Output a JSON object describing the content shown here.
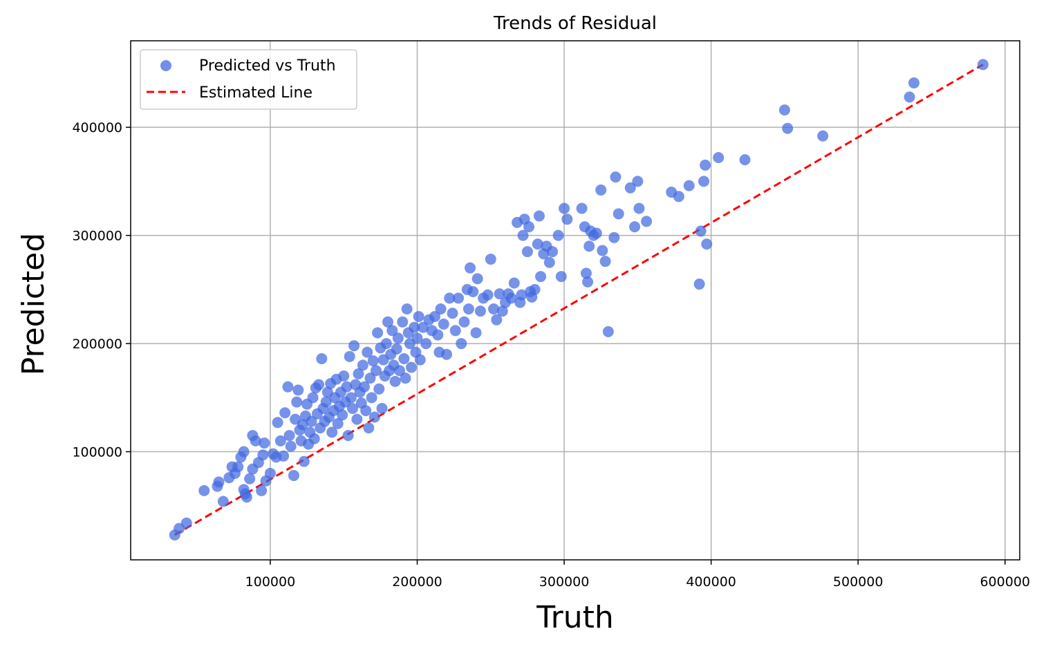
{
  "chart_data": {
    "type": "scatter",
    "title": "Trends of Residual",
    "xlabel": "Truth",
    "ylabel": "Predicted",
    "xlim": [
      5000,
      610000
    ],
    "ylim": [
      0,
      480000
    ],
    "xticks": [
      100000,
      200000,
      300000,
      400000,
      500000,
      600000
    ],
    "yticks": [
      100000,
      200000,
      300000,
      400000
    ],
    "grid": true,
    "legend_position": "top-left",
    "colors": {
      "points": "#4169e1",
      "line": "#ff0000"
    },
    "series": [
      {
        "name": "Predicted vs Truth",
        "kind": "scatter",
        "points": [
          [
            35000,
            23000
          ],
          [
            38000,
            29000
          ],
          [
            43000,
            34000
          ],
          [
            55000,
            64000
          ],
          [
            64000,
            68000
          ],
          [
            65000,
            72000
          ],
          [
            68000,
            54000
          ],
          [
            72000,
            76000
          ],
          [
            74000,
            86000
          ],
          [
            76000,
            80000
          ],
          [
            78000,
            86000
          ],
          [
            80000,
            95000
          ],
          [
            82000,
            100000
          ],
          [
            82000,
            65000
          ],
          [
            83000,
            61000
          ],
          [
            84000,
            58000
          ],
          [
            86000,
            75000
          ],
          [
            88000,
            84000
          ],
          [
            88000,
            115000
          ],
          [
            90000,
            110000
          ],
          [
            92000,
            90000
          ],
          [
            94000,
            64000
          ],
          [
            95000,
            97000
          ],
          [
            96000,
            108000
          ],
          [
            97000,
            73000
          ],
          [
            100000,
            80000
          ],
          [
            102000,
            98000
          ],
          [
            104000,
            95000
          ],
          [
            105000,
            127000
          ],
          [
            107000,
            110000
          ],
          [
            109000,
            96000
          ],
          [
            110000,
            136000
          ],
          [
            112000,
            160000
          ],
          [
            113000,
            115000
          ],
          [
            114000,
            105000
          ],
          [
            116000,
            78000
          ],
          [
            117000,
            130000
          ],
          [
            118000,
            146000
          ],
          [
            119000,
            157000
          ],
          [
            120000,
            120000
          ],
          [
            121000,
            110000
          ],
          [
            122000,
            125000
          ],
          [
            123000,
            91000
          ],
          [
            124000,
            133000
          ],
          [
            125000,
            144000
          ],
          [
            126000,
            107000
          ],
          [
            127000,
            118000
          ],
          [
            128000,
            128000
          ],
          [
            129000,
            150000
          ],
          [
            130000,
            112000
          ],
          [
            131000,
            159000
          ],
          [
            132000,
            135000
          ],
          [
            133000,
            162000
          ],
          [
            134000,
            122000
          ],
          [
            135000,
            186000
          ],
          [
            136000,
            140000
          ],
          [
            137000,
            128000
          ],
          [
            138000,
            146000
          ],
          [
            139000,
            155000
          ],
          [
            140000,
            132000
          ],
          [
            141000,
            163000
          ],
          [
            142000,
            118000
          ],
          [
            143000,
            138000
          ],
          [
            144000,
            150000
          ],
          [
            145000,
            167000
          ],
          [
            146000,
            126000
          ],
          [
            147000,
            142000
          ],
          [
            148000,
            155000
          ],
          [
            149000,
            134000
          ],
          [
            150000,
            170000
          ],
          [
            151000,
            146000
          ],
          [
            152000,
            160000
          ],
          [
            153000,
            115000
          ],
          [
            154000,
            188000
          ],
          [
            155000,
            150000
          ],
          [
            156000,
            140000
          ],
          [
            157000,
            198000
          ],
          [
            158000,
            162000
          ],
          [
            159000,
            130000
          ],
          [
            160000,
            172000
          ],
          [
            161000,
            155000
          ],
          [
            162000,
            145000
          ],
          [
            163000,
            180000
          ],
          [
            164000,
            160000
          ],
          [
            165000,
            138000
          ],
          [
            166000,
            192000
          ],
          [
            167000,
            122000
          ],
          [
            168000,
            168000
          ],
          [
            169000,
            150000
          ],
          [
            170000,
            184000
          ],
          [
            171000,
            132000
          ],
          [
            172000,
            175000
          ],
          [
            173000,
            210000
          ],
          [
            174000,
            158000
          ],
          [
            175000,
            196000
          ],
          [
            176000,
            140000
          ],
          [
            177000,
            185000
          ],
          [
            178000,
            170000
          ],
          [
            179000,
            200000
          ],
          [
            180000,
            220000
          ],
          [
            181000,
            175000
          ],
          [
            182000,
            190000
          ],
          [
            183000,
            212000
          ],
          [
            184000,
            180000
          ],
          [
            185000,
            165000
          ],
          [
            186000,
            195000
          ],
          [
            187000,
            205000
          ],
          [
            188000,
            175000
          ],
          [
            190000,
            220000
          ],
          [
            191000,
            186000
          ],
          [
            192000,
            168000
          ],
          [
            193000,
            232000
          ],
          [
            194000,
            210000
          ],
          [
            195000,
            200000
          ],
          [
            196000,
            178000
          ],
          [
            198000,
            215000
          ],
          [
            199000,
            192000
          ],
          [
            200000,
            205000
          ],
          [
            201000,
            225000
          ],
          [
            202000,
            185000
          ],
          [
            204000,
            215000
          ],
          [
            206000,
            200000
          ],
          [
            208000,
            222000
          ],
          [
            210000,
            212000
          ],
          [
            212000,
            225000
          ],
          [
            214000,
            208000
          ],
          [
            215000,
            192000
          ],
          [
            216000,
            232000
          ],
          [
            218000,
            218000
          ],
          [
            220000,
            190000
          ],
          [
            222000,
            242000
          ],
          [
            224000,
            228000
          ],
          [
            226000,
            212000
          ],
          [
            228000,
            242000
          ],
          [
            230000,
            200000
          ],
          [
            232000,
            220000
          ],
          [
            234000,
            250000
          ],
          [
            235000,
            232000
          ],
          [
            236000,
            270000
          ],
          [
            238000,
            248000
          ],
          [
            240000,
            210000
          ],
          [
            241000,
            260000
          ],
          [
            243000,
            230000
          ],
          [
            245000,
            242000
          ],
          [
            248000,
            245000
          ],
          [
            250000,
            278000
          ],
          [
            252000,
            232000
          ],
          [
            254000,
            222000
          ],
          [
            256000,
            246000
          ],
          [
            258000,
            230000
          ],
          [
            260000,
            238000
          ],
          [
            262000,
            246000
          ],
          [
            264000,
            242000
          ],
          [
            266000,
            256000
          ],
          [
            268000,
            312000
          ],
          [
            270000,
            238000
          ],
          [
            271000,
            245000
          ],
          [
            272000,
            300000
          ],
          [
            273000,
            315000
          ],
          [
            275000,
            285000
          ],
          [
            276000,
            308000
          ],
          [
            277000,
            248000
          ],
          [
            278000,
            243000
          ],
          [
            280000,
            250000
          ],
          [
            282000,
            292000
          ],
          [
            283000,
            318000
          ],
          [
            284000,
            262000
          ],
          [
            286000,
            283000
          ],
          [
            288000,
            290000
          ],
          [
            290000,
            275000
          ],
          [
            292000,
            285000
          ],
          [
            296000,
            300000
          ],
          [
            298000,
            262000
          ],
          [
            300000,
            325000
          ],
          [
            302000,
            315000
          ],
          [
            312000,
            325000
          ],
          [
            314000,
            308000
          ],
          [
            315000,
            265000
          ],
          [
            316000,
            257000
          ],
          [
            317000,
            290000
          ],
          [
            318000,
            304000
          ],
          [
            320000,
            300000
          ],
          [
            322000,
            302000
          ],
          [
            325000,
            342000
          ],
          [
            326000,
            286000
          ],
          [
            328000,
            276000
          ],
          [
            330000,
            211000
          ],
          [
            334000,
            298000
          ],
          [
            335000,
            354000
          ],
          [
            337000,
            320000
          ],
          [
            345000,
            344000
          ],
          [
            348000,
            308000
          ],
          [
            350000,
            350000
          ],
          [
            351000,
            325000
          ],
          [
            356000,
            313000
          ],
          [
            373000,
            340000
          ],
          [
            378000,
            336000
          ],
          [
            385000,
            346000
          ],
          [
            392000,
            255000
          ],
          [
            393000,
            304000
          ],
          [
            395000,
            350000
          ],
          [
            396000,
            365000
          ],
          [
            397000,
            292000
          ],
          [
            405000,
            372000
          ],
          [
            423000,
            370000
          ],
          [
            450000,
            416000
          ],
          [
            452000,
            399000
          ],
          [
            476000,
            392000
          ],
          [
            535000,
            428000
          ],
          [
            538000,
            441000
          ],
          [
            585000,
            458000
          ]
        ]
      },
      {
        "name": "Estimated Line",
        "kind": "line",
        "points": [
          [
            35000,
            23000
          ],
          [
            585000,
            458000
          ]
        ]
      }
    ]
  }
}
